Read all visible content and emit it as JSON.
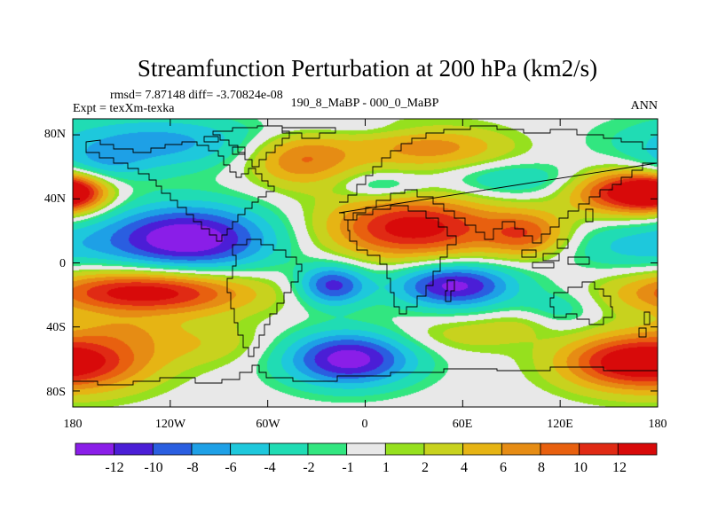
{
  "chart_data": {
    "type": "heatmap",
    "title": "Streamfunction Perturbation at 200 hPa (km2/s)",
    "stats": "rmsd= 7.87148  diff= -3.70824e-08",
    "left_label": "Expt = texXm-texka",
    "center_label": "190_8_MaBP - 000_0_MaBP",
    "right_label": "ANN",
    "x_range": [
      -180,
      180
    ],
    "y_range": [
      -90,
      90
    ],
    "x_ticks": [
      {
        "value": -180,
        "label": "180"
      },
      {
        "value": -120,
        "label": "120W"
      },
      {
        "value": -60,
        "label": "60W"
      },
      {
        "value": 0,
        "label": "0"
      },
      {
        "value": 60,
        "label": "60E"
      },
      {
        "value": 120,
        "label": "120E"
      },
      {
        "value": 180,
        "label": "180"
      }
    ],
    "y_ticks": [
      {
        "value": 80,
        "label": "80N"
      },
      {
        "value": 40,
        "label": "40N"
      },
      {
        "value": 0,
        "label": "0"
      },
      {
        "value": -40,
        "label": "40S"
      },
      {
        "value": -80,
        "label": "80S"
      }
    ],
    "levels": [
      -12,
      -10,
      -8,
      -6,
      -4,
      -2,
      -1,
      1,
      2,
      4,
      6,
      8,
      10,
      12
    ],
    "colorbar_labels": [
      "-12",
      "-10",
      "-8",
      "-6",
      "-4",
      "-2",
      "-1",
      "1",
      "2",
      "4",
      "6",
      "8",
      "10",
      "12"
    ],
    "colors": [
      "#8a1ee8",
      "#4b1ed6",
      "#2a5ee0",
      "#1ea0e6",
      "#1ec8dc",
      "#20dcb4",
      "#32e680",
      "#e8e8e8",
      "#96e01e",
      "#c8d21e",
      "#e6b414",
      "#e68c14",
      "#e8600f",
      "#e02a14",
      "#d80a0a"
    ],
    "field_components": [
      {
        "lon": -110,
        "lat": 15,
        "sx": 38,
        "sy": 15,
        "amp": -14.5
      },
      {
        "lon": -135,
        "lat": -18,
        "sx": 45,
        "sy": 10,
        "amp": 14.5
      },
      {
        "lon": -20,
        "lat": -14,
        "sx": 15,
        "sy": 9,
        "amp": -11
      },
      {
        "lon": 55,
        "lat": -14,
        "sx": 26,
        "sy": 10,
        "amp": -13
      },
      {
        "lon": 30,
        "lat": 22,
        "sx": 38,
        "sy": 14,
        "amp": 13.5
      },
      {
        "lon": 100,
        "lat": 18,
        "sx": 18,
        "sy": 10,
        "amp": 8
      },
      {
        "lon": -10,
        "lat": -60,
        "sx": 28,
        "sy": 12,
        "amp": -13.5
      },
      {
        "lon": -170,
        "lat": -62,
        "sx": 30,
        "sy": 13,
        "amp": 9.5
      },
      {
        "lon": 155,
        "lat": -62,
        "sx": 28,
        "sy": 12,
        "amp": 9.5
      },
      {
        "lon": -105,
        "lat": -50,
        "sx": 32,
        "sy": 10,
        "amp": 3.5
      },
      {
        "lon": -130,
        "lat": 75,
        "sx": 50,
        "sy": 12,
        "amp": -7
      },
      {
        "lon": -40,
        "lat": 65,
        "sx": 24,
        "sy": 12,
        "amp": 8.5
      },
      {
        "lon": 40,
        "lat": 72,
        "sx": 35,
        "sy": 10,
        "amp": 7
      },
      {
        "lon": 10,
        "lat": 48,
        "sx": 18,
        "sy": 6,
        "amp": -4
      },
      {
        "lon": 90,
        "lat": 52,
        "sx": 30,
        "sy": 8,
        "amp": -4.5
      },
      {
        "lon": 160,
        "lat": 44,
        "sx": 24,
        "sy": 10,
        "amp": 13
      },
      {
        "lon": -180,
        "lat": 44,
        "sx": 14,
        "sy": 8,
        "amp": 10
      },
      {
        "lon": -165,
        "lat": 60,
        "sx": 20,
        "sy": 8,
        "amp": -4
      },
      {
        "lon": 160,
        "lat": 10,
        "sx": 30,
        "sy": 12,
        "amp": -4
      },
      {
        "lon": 120,
        "lat": -30,
        "sx": 16,
        "sy": 10,
        "amp": -3.5
      },
      {
        "lon": 100,
        "lat": -38,
        "sx": 20,
        "sy": 6,
        "amp": 2
      },
      {
        "lon": 60,
        "lat": -45,
        "sx": 30,
        "sy": 8,
        "amp": 3
      },
      {
        "lon": -150,
        "lat": -42,
        "sx": 20,
        "sy": 6,
        "amp": 2.5
      },
      {
        "lon": 0,
        "lat": 83,
        "sx": 40,
        "sy": 4,
        "amp": -1.5
      }
    ]
  }
}
